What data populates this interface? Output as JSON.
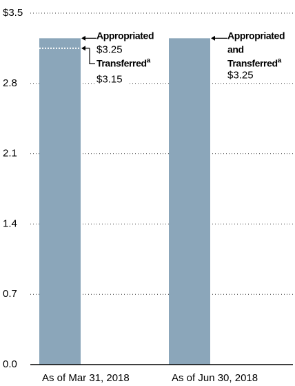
{
  "chart_data": {
    "type": "bar",
    "categories": [
      "As of Mar 31, 2018",
      "As of Jun 30, 2018"
    ],
    "series": [
      {
        "name": "Appropriated",
        "color": "#8ba6ba",
        "values": [
          3.25,
          3.25
        ]
      }
    ],
    "ylim": [
      0,
      3.5
    ],
    "yticks": [
      {
        "value": 0,
        "label": "0.0"
      },
      0.7,
      1.4,
      2.1,
      2.8,
      {
        "value": 3.5,
        "label": "$3.5"
      }
    ],
    "grid": true,
    "annotations": [
      {
        "lines": [
          "Appropriated"
        ],
        "value": 3.25,
        "value_label": "$3.25"
      },
      {
        "lines": [
          "Transferred"
        ],
        "note": "a",
        "value": 3.15,
        "value_label": "$3.15"
      },
      {
        "lines": [
          "Appropriated",
          "and",
          "Transferred"
        ],
        "note": "a",
        "value": 3.25,
        "value_label": "$3.25"
      }
    ]
  }
}
